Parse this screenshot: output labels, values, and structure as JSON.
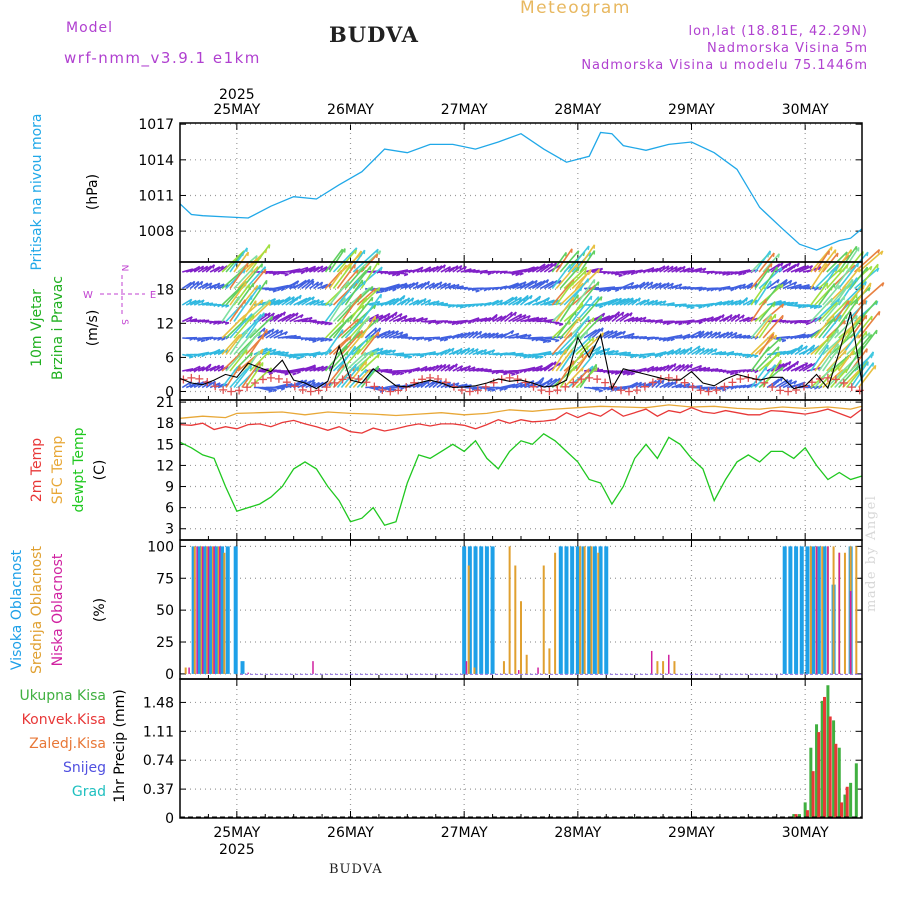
{
  "header": {
    "model_label": "Model",
    "model_name": "wrf-nmm_v3.9.1 e1km",
    "city": "BUDVA",
    "meteogram": "Meteogram",
    "location": "lon,lat (18.81E, 42.29N)",
    "elevation": "Nadmorska Visina 5m",
    "model_elevation": "Nadmorska Visina u modelu 75.1446m",
    "footer_city": "BUDVA",
    "made_by": "made by Angel"
  },
  "colors": {
    "pressure": "#20a8e8",
    "temp_2m": "#e83838",
    "temp_sfc": "#e8a838",
    "dewpoint": "#20c820",
    "cloud_high": "#1ea0e8",
    "cloud_mid": "#e0a030",
    "cloud_low": "#d020a0",
    "precip_total": "#40b040",
    "precip_conv": "#e83838",
    "wind_purple": "#8020c8",
    "wind_slow": "#e05050",
    "label_purple": "#c040d0"
  },
  "chart_data": {
    "type": "meteogram",
    "x_axis": {
      "ticks": [
        "25MAY",
        "26MAY",
        "27MAY",
        "28MAY",
        "29MAY",
        "30MAY"
      ],
      "year": "2025",
      "start_day": 24.5,
      "end_day": 30.5
    },
    "panels": [
      {
        "id": "pressure",
        "type": "line",
        "labels": [
          "Pritisak na nivou mora"
        ],
        "unit": "(hPa)",
        "yticks": [
          1008,
          1011,
          1014,
          1017
        ],
        "ylim": [
          1005.4,
          1017.1
        ],
        "series": [
          {
            "name": "Pritisak",
            "x": [
              24.5,
              24.6,
              24.7,
              24.9,
              25.1,
              25.3,
              25.5,
              25.7,
              25.9,
              26.1,
              26.3,
              26.5,
              26.7,
              26.9,
              27.1,
              27.3,
              27.5,
              27.7,
              27.9,
              28.1,
              28.2,
              28.3,
              28.4,
              28.6,
              28.8,
              29.0,
              29.2,
              29.4,
              29.6,
              29.8,
              29.95,
              30.1,
              30.2,
              30.3,
              30.4,
              30.5
            ],
            "y": [
              1010.3,
              1009.4,
              1009.3,
              1009.2,
              1009.1,
              1010.1,
              1010.9,
              1010.7,
              1011.9,
              1013.0,
              1014.9,
              1014.6,
              1015.3,
              1015.3,
              1014.9,
              1015.5,
              1016.2,
              1014.9,
              1013.8,
              1014.3,
              1016.3,
              1016.2,
              1015.2,
              1014.8,
              1015.3,
              1015.5,
              1014.6,
              1013.2,
              1010.0,
              1008.2,
              1006.9,
              1006.4,
              1006.8,
              1007.2,
              1007.4,
              1008.2
            ]
          }
        ]
      },
      {
        "id": "wind",
        "type": "line",
        "labels": [
          "10m Vjetar",
          "Brzina i Pravac"
        ],
        "unit": "(m/s)",
        "yticks": [
          0,
          6,
          12,
          18
        ],
        "ylim": [
          -1.5,
          22.8
        ],
        "direction_legend": [
          "N",
          "W",
          "E",
          "S"
        ],
        "series": [
          {
            "name": "Brzina",
            "x": [
              24.5,
              24.6,
              24.7,
              24.8,
              24.9,
              25.0,
              25.1,
              25.2,
              25.3,
              25.4,
              25.5,
              25.6,
              25.7,
              25.8,
              25.9,
              26.0,
              26.1,
              26.2,
              26.3,
              26.4,
              26.5,
              26.6,
              26.7,
              26.8,
              26.9,
              27.0,
              27.1,
              27.2,
              27.3,
              27.4,
              27.5,
              27.6,
              27.7,
              27.8,
              27.9,
              28.0,
              28.1,
              28.2,
              28.3,
              28.4,
              28.5,
              28.6,
              28.7,
              28.8,
              28.9,
              29.0,
              29.1,
              29.2,
              29.3,
              29.4,
              29.5,
              29.6,
              29.7,
              29.8,
              29.9,
              30.0,
              30.1,
              30.2,
              30.3,
              30.4,
              30.5
            ],
            "y": [
              2.3,
              1.5,
              1.2,
              2.0,
              3.0,
              2.5,
              5.0,
              4.2,
              3.5,
              5.5,
              2.0,
              1.5,
              0.5,
              1.8,
              8.0,
              2.0,
              1.5,
              4.0,
              2.5,
              1.0,
              0.8,
              1.5,
              2.0,
              1.5,
              0.7,
              0.8,
              1.0,
              1.5,
              2.2,
              1.8,
              2.0,
              1.5,
              0.8,
              1.0,
              2.0,
              9.5,
              6.0,
              10.0,
              0.5,
              4.0,
              3.5,
              3.0,
              2.5,
              2.0,
              2.0,
              3.5,
              1.5,
              1.0,
              2.2,
              3.0,
              2.5,
              2.0,
              2.5,
              2.5,
              0.5,
              1.0,
              3.0,
              0.6,
              7.0,
              14.0,
              1.5
            ]
          }
        ]
      },
      {
        "id": "temperature",
        "type": "line",
        "labels": [
          "2m Temp",
          "SFC Temp",
          "dewpt Temp"
        ],
        "unit": "(C)",
        "yticks": [
          3,
          6,
          9,
          12,
          15,
          18,
          21
        ],
        "ylim": [
          1.4,
          21.3
        ],
        "series": [
          {
            "name": "2m Temp",
            "x": [
              24.5,
              24.6,
              24.7,
              24.8,
              24.9,
              25.0,
              25.1,
              25.2,
              25.3,
              25.4,
              25.5,
              25.6,
              25.7,
              25.8,
              25.9,
              26.0,
              26.1,
              26.2,
              26.3,
              26.4,
              26.5,
              26.6,
              26.7,
              26.8,
              26.9,
              27.0,
              27.1,
              27.2,
              27.3,
              27.4,
              27.5,
              27.6,
              27.7,
              27.8,
              27.9,
              28.0,
              28.1,
              28.2,
              28.3,
              28.4,
              28.5,
              28.6,
              28.7,
              28.8,
              28.9,
              29.0,
              29.1,
              29.2,
              29.3,
              29.4,
              29.5,
              29.6,
              29.7,
              29.8,
              29.9,
              30.0,
              30.1,
              30.2,
              30.3,
              30.4,
              30.5
            ],
            "y": [
              17.8,
              17.7,
              18.0,
              17.1,
              17.5,
              17.2,
              17.8,
              17.9,
              17.5,
              18.1,
              18.4,
              17.9,
              17.5,
              17.0,
              17.5,
              16.8,
              16.6,
              17.3,
              16.9,
              17.2,
              17.6,
              17.9,
              17.6,
              17.9,
              17.9,
              17.7,
              17.2,
              17.8,
              18.5,
              18.0,
              18.5,
              18.2,
              18.3,
              18.5,
              19.5,
              18.8,
              19.5,
              19.0,
              20.0,
              19.0,
              19.5,
              20.0,
              19.0,
              19.8,
              19.5,
              20.2,
              19.6,
              19.4,
              19.8,
              19.5,
              19.2,
              19.2,
              19.8,
              19.7,
              19.5,
              19.3,
              19.6,
              20.0,
              19.4,
              18.8,
              20.0
            ]
          },
          {
            "name": "SFC Temp",
            "x": [
              24.5,
              24.7,
              24.9,
              25.0,
              25.2,
              25.4,
              25.6,
              25.8,
              26.0,
              26.2,
              26.4,
              26.6,
              26.8,
              27.0,
              27.2,
              27.4,
              27.6,
              27.8,
              28.0,
              28.2,
              28.4,
              28.6,
              28.8,
              29.0,
              29.2,
              29.4,
              29.6,
              29.8,
              30.0,
              30.2,
              30.4,
              30.5
            ],
            "y": [
              18.7,
              19.0,
              18.8,
              19.4,
              19.5,
              19.6,
              19.2,
              19.6,
              19.4,
              19.3,
              19.1,
              19.3,
              19.5,
              19.2,
              19.4,
              19.9,
              19.7,
              20.0,
              20.2,
              20.4,
              20.3,
              20.2,
              20.6,
              20.3,
              20.4,
              20.1,
              20.0,
              20.3,
              20.1,
              20.3,
              20.0,
              20.4
            ]
          },
          {
            "name": "dewpt Temp",
            "x": [
              24.5,
              24.6,
              24.7,
              24.8,
              24.9,
              25.0,
              25.1,
              25.2,
              25.3,
              25.4,
              25.5,
              25.6,
              25.7,
              25.8,
              25.9,
              26.0,
              26.1,
              26.2,
              26.3,
              26.4,
              26.5,
              26.6,
              26.7,
              26.8,
              26.9,
              27.0,
              27.1,
              27.2,
              27.3,
              27.4,
              27.5,
              27.6,
              27.7,
              27.8,
              27.9,
              28.0,
              28.1,
              28.2,
              28.3,
              28.4,
              28.5,
              28.6,
              28.7,
              28.8,
              28.9,
              29.0,
              29.1,
              29.2,
              29.3,
              29.4,
              29.5,
              29.6,
              29.7,
              29.8,
              29.9,
              30.0,
              30.1,
              30.2,
              30.3,
              30.4,
              30.5
            ],
            "y": [
              15.3,
              14.5,
              13.5,
              13.0,
              9.0,
              5.5,
              6.0,
              6.5,
              7.5,
              9.0,
              11.5,
              12.5,
              11.5,
              9.0,
              7.0,
              4.0,
              4.5,
              6.0,
              3.5,
              4.0,
              9.5,
              13.5,
              13.0,
              14.0,
              15.0,
              14.0,
              15.5,
              13.0,
              11.5,
              14.0,
              15.5,
              15.0,
              16.5,
              15.5,
              14.0,
              12.5,
              10.0,
              9.5,
              6.5,
              9.0,
              13.0,
              15.0,
              13.0,
              16.0,
              15.0,
              13.0,
              11.5,
              7.0,
              10.0,
              12.5,
              13.5,
              12.5,
              14.0,
              14.0,
              13.0,
              14.5,
              12.0,
              10.0,
              11.0,
              10.0,
              10.5
            ]
          }
        ]
      },
      {
        "id": "clouds",
        "type": "bar",
        "labels": [
          "Visoka Oblacnost",
          "Srednja Oblacnost",
          "Niska Oblacnost"
        ],
        "unit": "(%)",
        "yticks": [
          0,
          25,
          50,
          75,
          100
        ],
        "ylim": [
          -4,
          105
        ],
        "series": [
          {
            "name": "Visoka Oblacnost",
            "x": [
              24.62,
              24.67,
              24.72,
              24.77,
              24.82,
              24.87,
              24.92,
              24.99,
              25.05,
              27.0,
              27.05,
              27.1,
              27.15,
              27.2,
              27.25,
              27.85,
              27.9,
              27.95,
              28.0,
              28.05,
              28.1,
              28.15,
              28.2,
              28.25,
              29.82,
              29.87,
              29.92,
              29.97,
              30.02,
              30.07,
              30.12,
              30.17,
              30.25,
              30.4
            ],
            "y": [
              100,
              100,
              100,
              100,
              100,
              100,
              100,
              100,
              10,
              100,
              100,
              100,
              100,
              100,
              100,
              100,
              100,
              100,
              100,
              100,
              100,
              100,
              100,
              100,
              100,
              100,
              100,
              100,
              100,
              100,
              100,
              100,
              70,
              100
            ]
          },
          {
            "name": "Srednja Oblacnost",
            "x": [
              24.55,
              24.63,
              24.69,
              24.74,
              24.79,
              24.84,
              24.89,
              27.04,
              27.09,
              27.35,
              27.4,
              27.45,
              27.5,
              27.55,
              27.7,
              27.75,
              27.8,
              28.02,
              28.06,
              28.12,
              28.18,
              28.7,
              28.75,
              28.85,
              30.05,
              30.1,
              30.15,
              30.2,
              30.25,
              30.3,
              30.35,
              30.4,
              30.45
            ],
            "y": [
              5,
              100,
              100,
              100,
              100,
              100,
              95,
              85,
              5,
              10,
              100,
              85,
              57,
              15,
              85,
              20,
              95,
              100,
              100,
              100,
              95,
              10,
              10,
              10,
              100,
              100,
              100,
              100,
              100,
              95,
              95,
              100,
              100
            ]
          },
          {
            "name": "Niska Oblacnost",
            "x": [
              24.58,
              24.65,
              24.7,
              24.75,
              24.8,
              24.85,
              25.1,
              25.67,
              27.02,
              27.48,
              27.65,
              28.65,
              28.8,
              30.1,
              30.2,
              30.3,
              30.4
            ],
            "y": [
              5,
              100,
              100,
              100,
              100,
              100,
              1,
              10,
              10,
              3,
              5,
              18,
              15,
              100,
              100,
              95,
              65
            ]
          }
        ]
      },
      {
        "id": "precip",
        "type": "bar",
        "labels": [
          "Ukupna Kisa",
          "Konvek.Kisa",
          "Zaledj.Kisa",
          "Snijeg",
          "Grad"
        ],
        "unit": "1hr Precip (mm)",
        "yticks": [
          0,
          0.37,
          0.74,
          1.11,
          1.48
        ],
        "ylim": [
          0,
          1.78
        ],
        "series": [
          {
            "name": "Ukupna Kisa",
            "x": [
              28.5,
              29.9,
              29.95,
              30.0,
              30.05,
              30.1,
              30.15,
              30.2,
              30.25,
              30.3,
              30.35,
              30.4,
              30.45
            ],
            "y": [
              0.01,
              0.05,
              0.05,
              0.2,
              0.9,
              1.2,
              1.5,
              1.7,
              1.25,
              0.9,
              0.3,
              0.45,
              0.7
            ]
          },
          {
            "name": "Konvek.Kisa",
            "x": [
              29.92,
              30.02,
              30.07,
              30.12,
              30.17,
              30.22,
              30.27,
              30.32,
              30.37
            ],
            "y": [
              0.05,
              0.1,
              0.6,
              1.1,
              1.55,
              1.3,
              0.95,
              0.2,
              0.4
            ]
          }
        ]
      }
    ]
  }
}
